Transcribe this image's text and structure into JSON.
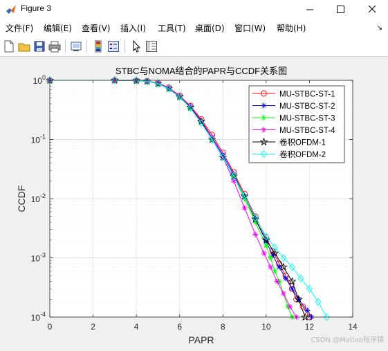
{
  "window": {
    "title": "Figure 3"
  },
  "menu": {
    "items": [
      "文件(F)",
      "编辑(E)",
      "查看(V)",
      "插入(I)",
      "工具(T)",
      "桌面(D)",
      "窗口(W)",
      "帮助(H)"
    ],
    "overflow_glyph": "↘"
  },
  "toolbar": {
    "buttons": [
      "new-figure-icon",
      "open-folder-icon",
      "save-icon",
      "print-icon",
      "link-plot-icon",
      "colorbar-icon",
      "legend-icon",
      "pointer-icon",
      "property-inspector-icon"
    ]
  },
  "watermark": "CSDN @Matlab程序猿",
  "chart_data": {
    "type": "line",
    "title": "STBC与NOMA结合的PAPR与CCDF关系图",
    "xlabel": "PAPR",
    "ylabel": "CCDF",
    "xlim": [
      0,
      14
    ],
    "ylim": [
      0.0001,
      1
    ],
    "yscale": "log",
    "grid": true,
    "x_ticks": [
      "0",
      "2",
      "4",
      "6",
      "8",
      "10",
      "12",
      "14"
    ],
    "y_ticks": [
      {
        "base": "10",
        "exp": "0"
      },
      {
        "base": "10",
        "exp": "-1"
      },
      {
        "base": "10",
        "exp": "-2"
      },
      {
        "base": "10",
        "exp": "-3"
      },
      {
        "base": "10",
        "exp": "-4"
      }
    ],
    "legend_position": "top-right",
    "series": [
      {
        "name": "MU-STBC-ST-1",
        "color": "#ff0000",
        "marker": "circle",
        "x": [
          0,
          3.0,
          4.0,
          4.5,
          5.0,
          5.5,
          6.0,
          6.5,
          7.0,
          7.5,
          8.0,
          8.5,
          9.0,
          9.5,
          10.0,
          10.3,
          10.6,
          10.9,
          11.2,
          11.4,
          11.7,
          12.0
        ],
        "y": [
          1,
          1,
          0.99,
          0.97,
          0.9,
          0.75,
          0.55,
          0.37,
          0.22,
          0.12,
          0.06,
          0.028,
          0.012,
          0.005,
          0.0022,
          0.0013,
          0.0008,
          0.0005,
          0.0003,
          0.0002,
          0.00015,
          0.0001
        ]
      },
      {
        "name": "MU-STBC-ST-2",
        "color": "#0000ff",
        "marker": "asterisk",
        "x": [
          0,
          3.0,
          4.0,
          4.5,
          5.0,
          5.5,
          6.0,
          6.5,
          7.0,
          7.5,
          8.0,
          8.5,
          9.0,
          9.5,
          10.0,
          10.3,
          10.6,
          10.9,
          11.2,
          11.5,
          11.9,
          12.1
        ],
        "y": [
          1,
          1,
          0.99,
          0.96,
          0.88,
          0.72,
          0.52,
          0.35,
          0.2,
          0.11,
          0.055,
          0.026,
          0.011,
          0.0045,
          0.0019,
          0.0011,
          0.0007,
          0.00045,
          0.0003,
          0.0002,
          0.00013,
          0.0001
        ]
      },
      {
        "name": "MU-STBC-ST-3",
        "color": "#00ff00",
        "marker": "asterisk",
        "x": [
          0,
          3.0,
          4.0,
          4.5,
          5.0,
          5.5,
          6.0,
          6.5,
          7.0,
          7.5,
          8.0,
          8.5,
          9.0,
          9.5,
          10.0,
          10.2,
          10.4,
          10.6,
          10.8,
          11.0,
          11.2
        ],
        "y": [
          1,
          1,
          0.99,
          0.96,
          0.88,
          0.72,
          0.52,
          0.34,
          0.2,
          0.1,
          0.05,
          0.024,
          0.01,
          0.004,
          0.0016,
          0.001,
          0.0006,
          0.0004,
          0.00025,
          0.00015,
          0.0001
        ]
      },
      {
        "name": "MU-STBC-ST-4",
        "color": "#ff00ff",
        "marker": "asterisk",
        "x": [
          0,
          3.0,
          4.0,
          4.5,
          5.0,
          5.5,
          6.0,
          6.5,
          7.0,
          7.5,
          8.0,
          8.5,
          9.0,
          9.5,
          9.9,
          10.2,
          10.5,
          10.8,
          11.1,
          11.4
        ],
        "y": [
          1,
          1,
          0.99,
          0.96,
          0.9,
          0.75,
          0.55,
          0.37,
          0.21,
          0.11,
          0.05,
          0.02,
          0.007,
          0.0025,
          0.0012,
          0.0007,
          0.0004,
          0.00025,
          0.00015,
          0.0001
        ]
      },
      {
        "name": "卷积OFDM-1",
        "color": "#000000",
        "marker": "pentagram",
        "x": [
          0,
          3.0,
          4.0,
          4.5,
          5.0,
          5.5,
          6.0,
          6.5,
          7.0,
          7.5,
          8.0,
          8.5,
          9.0,
          9.5,
          10.0,
          10.4,
          10.8,
          11.2,
          11.5,
          11.8
        ],
        "y": [
          1,
          1,
          0.99,
          0.96,
          0.88,
          0.73,
          0.53,
          0.35,
          0.2,
          0.1,
          0.05,
          0.024,
          0.011,
          0.0045,
          0.002,
          0.0012,
          0.0007,
          0.0004,
          0.0002,
          0.0001
        ]
      },
      {
        "name": "卷积OFDM-2",
        "color": "#00ffff",
        "marker": "diamond",
        "x": [
          0,
          3.0,
          4.0,
          4.5,
          5.0,
          5.5,
          6.0,
          6.5,
          7.0,
          7.5,
          8.0,
          8.5,
          9.0,
          9.5,
          10.0,
          10.4,
          10.8,
          11.2,
          11.6,
          12.0,
          12.4,
          12.8
        ],
        "y": [
          1,
          1,
          0.99,
          0.96,
          0.88,
          0.72,
          0.52,
          0.34,
          0.19,
          0.1,
          0.05,
          0.024,
          0.011,
          0.0048,
          0.0023,
          0.0015,
          0.001,
          0.0007,
          0.00045,
          0.0003,
          0.00018,
          0.0001
        ]
      }
    ]
  }
}
